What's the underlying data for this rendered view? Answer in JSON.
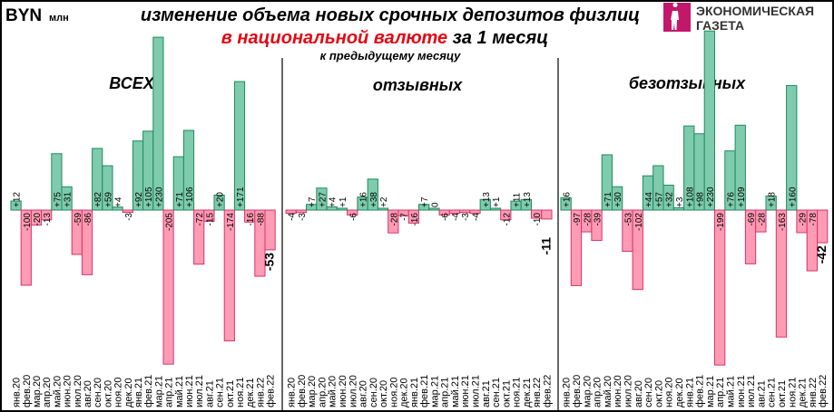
{
  "header": {
    "currency": "BYN",
    "unit": "млн",
    "title_line1": "изменение объема новых срочных депозитов физлиц",
    "title_line2_red": "в национальной валюте",
    "title_line2_black": " за 1 месяц",
    "subtitle": "к предыдущему месяцу"
  },
  "logo": {
    "line1": "ЭКОНОМИЧЕСКАЯ",
    "line2": "ГАЗЕТА",
    "color": "#c2186b"
  },
  "colors": {
    "positive_fill": "#7fcbae",
    "positive_stroke": "#1f8a5c",
    "negative_fill": "#ff9bb3",
    "negative_stroke": "#d6336c"
  },
  "chart_data": [
    {
      "type": "bar",
      "title": "ВСЕХ",
      "categories": [
        "янв.20",
        "фев.20",
        "мар.20",
        "апр.20",
        "май.20",
        "июн.20",
        "июл.20",
        "авг.20",
        "сен.20",
        "окт.20",
        "ноя.20",
        "дек.20",
        "янв.21",
        "фев.21",
        "мар.21",
        "апр.21",
        "май.21",
        "июн.21",
        "июл.21",
        "авг.21",
        "сен.21",
        "окт.21",
        "ноя.21",
        "дек.21",
        "янв.22",
        "фев.22"
      ],
      "values": [
        12,
        -100,
        -20,
        -13,
        75,
        31,
        -59,
        -86,
        82,
        59,
        4,
        -3,
        92,
        105,
        230,
        -205,
        71,
        106,
        -72,
        -15,
        20,
        -174,
        171,
        -16,
        -88,
        -53
      ],
      "highlight_last": true
    },
    {
      "type": "bar",
      "title": "отзывных",
      "categories": [
        "янв.20",
        "фев.20",
        "мар.20",
        "апр.20",
        "май.20",
        "июн.20",
        "июл.20",
        "авг.20",
        "сен.20",
        "окт.20",
        "ноя.20",
        "дек.20",
        "янв.21",
        "фев.21",
        "мар.21",
        "апр.21",
        "май.21",
        "июн.21",
        "июл.21",
        "авг.21",
        "сен.21",
        "окт.21",
        "ноя.21",
        "дек.21",
        "янв.22",
        "фев.22"
      ],
      "values": [
        -4,
        -3,
        7,
        27,
        4,
        1,
        -6,
        16,
        38,
        2,
        -28,
        -7,
        -16,
        7,
        0,
        -6,
        -4,
        -3,
        -4,
        13,
        1,
        -12,
        11,
        13,
        -10,
        -11
      ],
      "highlight_last": true
    },
    {
      "type": "bar",
      "title": "безотзывных",
      "categories": [
        "янв.20",
        "фев.20",
        "мар.20",
        "апр.20",
        "май.20",
        "июн.20",
        "июл.20",
        "авг.20",
        "сен.20",
        "окт.20",
        "ноя.20",
        "дек.20",
        "янв.21",
        "фев.21",
        "мар.21",
        "апр.21",
        "май.21",
        "июн.21",
        "июл.21",
        "авг.21",
        "сен.21",
        "окт.21",
        "ноя.21",
        "дек.21",
        "янв.22",
        "фев.22"
      ],
      "values": [
        16,
        -97,
        -28,
        -39,
        71,
        30,
        -53,
        -102,
        44,
        57,
        32,
        3,
        108,
        98,
        230,
        -199,
        76,
        109,
        -69,
        -28,
        18,
        -163,
        160,
        -29,
        -78,
        -42
      ],
      "highlight_last": true
    }
  ]
}
